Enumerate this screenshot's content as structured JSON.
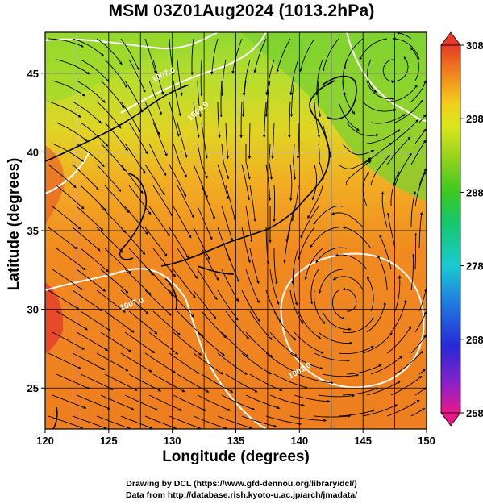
{
  "title": "MSM 03Z01Aug2024 (1013.2hPa)",
  "xlabel": "Longitude (degrees)",
  "ylabel": "Latitude  (degrees)",
  "credits": {
    "line1": "Drawing by DCL (https://www.gfd-dennou.org/library/dcl/)",
    "line2": "Data from http://database.rish.kyoto-u.ac.jp/arch/jmadata/"
  },
  "map": {
    "lon_range": [
      120,
      150
    ],
    "lat_range": [
      22.4,
      47.6
    ],
    "x_ticks": [
      "120",
      "125",
      "130",
      "135",
      "140",
      "145",
      "150"
    ],
    "y_ticks": [
      "25",
      "30",
      "35",
      "40",
      "45"
    ],
    "grid_lon": [
      120,
      122.5,
      125,
      127.5,
      130,
      132.5,
      135,
      137.5,
      140,
      142.5,
      145,
      147.5,
      150
    ],
    "grid_lat": [
      25,
      30,
      35,
      40,
      45
    ],
    "field": "temperature (K) with wind streamlines",
    "contour_labels": [
      "1007.0",
      "1004.0",
      "1001.0",
      "1007.0"
    ]
  },
  "colorbar": {
    "range": [
      258,
      308
    ],
    "tick_labels": [
      "308",
      "298",
      "288",
      "278",
      "268",
      "258"
    ],
    "tick_values": [
      308,
      298,
      288,
      278,
      268,
      258
    ],
    "colors": [
      "#e8188a",
      "#8e1fc8",
      "#2a2ad6",
      "#1f79e0",
      "#18c6d0",
      "#16cc6c",
      "#33c81f",
      "#8ed41a",
      "#d7e61a",
      "#f2d51a",
      "#f5a81a",
      "#f07c1c",
      "#ea5b22",
      "#e53a28"
    ]
  }
}
